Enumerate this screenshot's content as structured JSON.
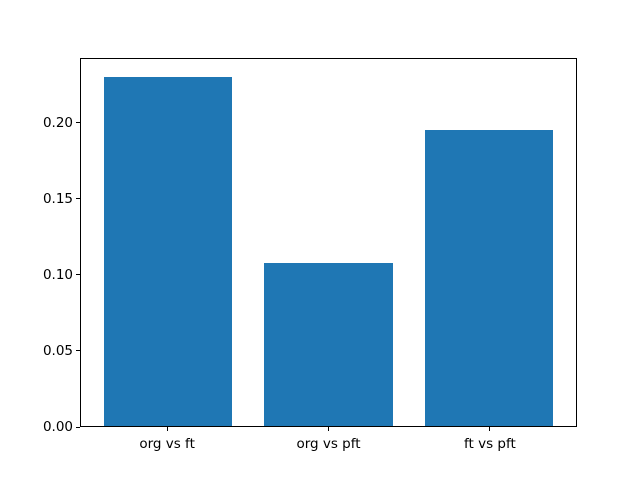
{
  "figure": {
    "background_color": "#ffffff",
    "spine_color": "#000000",
    "tick_color": "#000000"
  },
  "chart_data": {
    "type": "bar",
    "title": "",
    "xlabel": "",
    "ylabel": "",
    "categories": [
      "org vs ft",
      "org vs pft",
      "ft vs pft"
    ],
    "values": [
      0.231,
      0.108,
      0.196
    ],
    "bar_color": "#1f77b4",
    "bar_width_fraction": 0.8,
    "ylim": [
      0,
      0.2426
    ],
    "yticks": [
      0.0,
      0.05,
      0.1,
      0.15,
      0.2
    ],
    "ytick_labels": [
      "0.00",
      "0.05",
      "0.10",
      "0.15",
      "0.20"
    ],
    "grid": false,
    "legend": null
  }
}
